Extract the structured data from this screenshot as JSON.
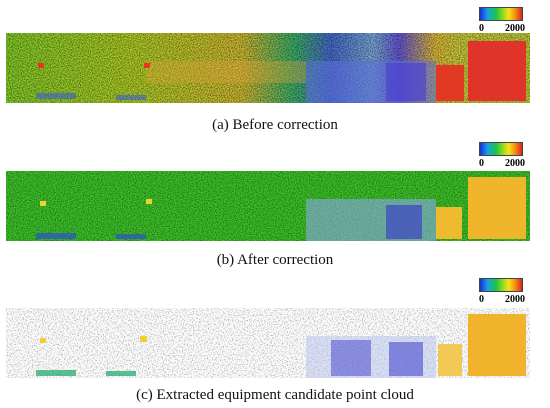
{
  "colorbar": {
    "min_label": "0",
    "max_label": "2000",
    "colors": [
      "#1b2fd6",
      "#1aa0e6",
      "#18c64a",
      "#9ad81c",
      "#f0e41c",
      "#f39a14",
      "#e0231a"
    ]
  },
  "panels": [
    {
      "caption": "(a) Before correction"
    },
    {
      "caption": "(b) After correction"
    },
    {
      "caption": "(c) Extracted equipment candidate point cloud"
    }
  ]
}
